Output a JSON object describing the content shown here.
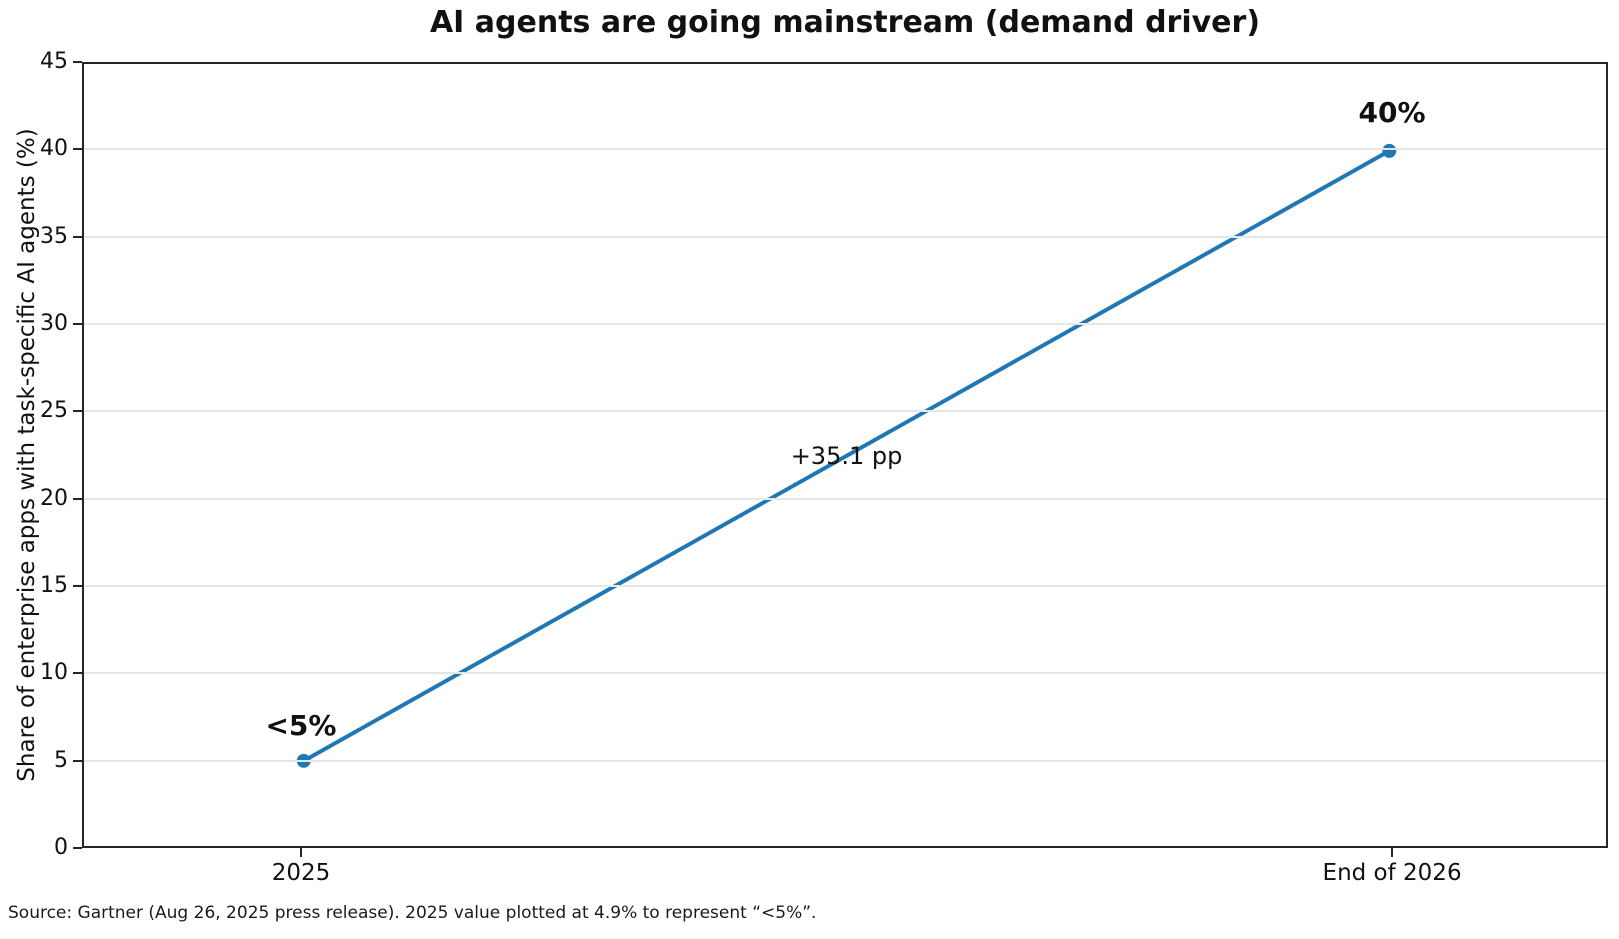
{
  "title": "AI agents are going mainstream (demand driver)",
  "source_note": "Source: Gartner (Aug 26, 2025 press release). 2025 value plotted at 4.9% to represent “<5%”.",
  "chart_data": {
    "type": "line",
    "title": "AI agents are going mainstream (demand driver)",
    "categories": [
      "2025",
      "End of 2026"
    ],
    "values": [
      4.9,
      40
    ],
    "point_labels": [
      "<5%",
      "40%"
    ],
    "annotation": "+35.1 pp",
    "xlabel": "",
    "ylabel": "Share of enterprise apps with task-specific AI agents (%)",
    "ylim": [
      0,
      45
    ],
    "ytick_step": 5,
    "yticks": [
      0,
      5,
      10,
      15,
      20,
      25,
      30,
      35,
      40,
      45
    ],
    "grid": "horizontal",
    "legend": "none",
    "colors": {
      "line": "#1f77b4",
      "marker": "#1f77b4",
      "grid": "#e6e6e6",
      "axis": "#262626",
      "text": "#111111",
      "background": "#ffffff"
    }
  }
}
